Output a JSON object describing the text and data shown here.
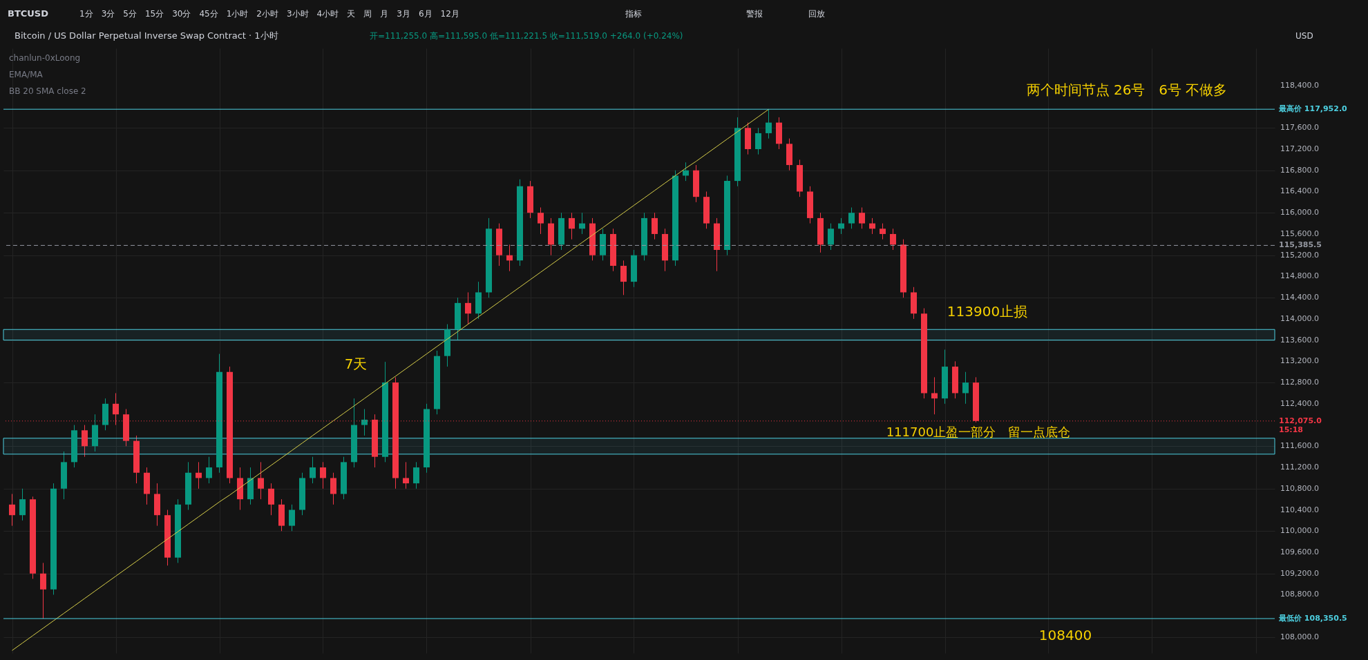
{
  "chart_data": {
    "type": "candlestick",
    "title": "Bitcoin / US Dollar Perpetual Inverse Swap Contract · 1小时",
    "categories": [
      null,
      null,
      null,
      null,
      null,
      null,
      null,
      null,
      null,
      null,
      null,
      null,
      null,
      null,
      null,
      null,
      null,
      null,
      null,
      null,
      null,
      null,
      null,
      null,
      null,
      null,
      null,
      null,
      null,
      null,
      null,
      null,
      null,
      null,
      null,
      null,
      null,
      null,
      null,
      null,
      null,
      null,
      null,
      null,
      null,
      null,
      null,
      null,
      null,
      null,
      null,
      null,
      null,
      null,
      null,
      null,
      null,
      null,
      null,
      null,
      null,
      null,
      null,
      null,
      null,
      null,
      null,
      null,
      null,
      null,
      null,
      null,
      null,
      null,
      null,
      null,
      null,
      null,
      null,
      null,
      null,
      null,
      null,
      null,
      null,
      null,
      null,
      null,
      null,
      null,
      null,
      null,
      null,
      null,
      null,
      null,
      null,
      null,
      null,
      null,
      null,
      null,
      null,
      null,
      null,
      null,
      null,
      null,
      null,
      null,
      null,
      null,
      null,
      null,
      null,
      null,
      null,
      null,
      null,
      null,
      null,
      null
    ],
    "ohlc": [
      [
        110500,
        110700,
        110100,
        110300
      ],
      [
        110300,
        110800,
        110200,
        110600
      ],
      [
        110600,
        110650,
        109100,
        109200
      ],
      [
        109200,
        109400,
        108350.5,
        108900
      ],
      [
        108900,
        110900,
        108800,
        110800
      ],
      [
        110800,
        111500,
        110600,
        111300
      ],
      [
        111300,
        112000,
        111200,
        111900
      ],
      [
        111900,
        112000,
        111400,
        111600
      ],
      [
        111600,
        112200,
        111500,
        112000
      ],
      [
        112000,
        112500,
        111900,
        112400
      ],
      [
        112400,
        112600,
        112000,
        112200
      ],
      [
        112200,
        112300,
        111600,
        111700
      ],
      [
        111700,
        111800,
        110900,
        111100
      ],
      [
        111100,
        111200,
        110500,
        110700
      ],
      [
        110700,
        110900,
        110100,
        110300
      ],
      [
        110300,
        110400,
        109350,
        109500
      ],
      [
        109500,
        110600,
        109400,
        110500
      ],
      [
        110500,
        111300,
        110400,
        111100
      ],
      [
        111100,
        111300,
        110800,
        111000
      ],
      [
        111000,
        111400,
        110900,
        111200
      ],
      [
        111200,
        113340,
        111100,
        113000
      ],
      [
        113000,
        113100,
        110900,
        111000
      ],
      [
        111000,
        111200,
        110400,
        110600
      ],
      [
        110600,
        111200,
        110500,
        111000
      ],
      [
        111000,
        111300,
        110600,
        110800
      ],
      [
        110800,
        110900,
        110300,
        110500
      ],
      [
        110500,
        110600,
        110000,
        110100
      ],
      [
        110100,
        110500,
        110000,
        110400
      ],
      [
        110400,
        111100,
        110300,
        111000
      ],
      [
        111000,
        111400,
        110900,
        111200
      ],
      [
        111200,
        111300,
        110800,
        111000
      ],
      [
        111000,
        111100,
        110500,
        110700
      ],
      [
        110700,
        111400,
        110600,
        111300
      ],
      [
        111300,
        112500,
        111200,
        112000
      ],
      [
        112000,
        112300,
        111800,
        112100
      ],
      [
        112100,
        112200,
        111200,
        111400
      ],
      [
        111400,
        113190,
        111300,
        112800
      ],
      [
        112800,
        112900,
        110800,
        111000
      ],
      [
        111000,
        111300,
        110800,
        110900
      ],
      [
        110900,
        111300,
        110800,
        111200
      ],
      [
        111200,
        112400,
        111100,
        112300
      ],
      [
        112300,
        113400,
        112200,
        113300
      ],
      [
        113300,
        113900,
        113100,
        113800
      ],
      [
        113800,
        114400,
        113600,
        114300
      ],
      [
        114300,
        114500,
        113900,
        114100
      ],
      [
        114100,
        114700,
        114000,
        114500
      ],
      [
        114500,
        115900,
        114400,
        115700
      ],
      [
        115700,
        115800,
        115000,
        115200
      ],
      [
        115200,
        115400,
        114900,
        115100
      ],
      [
        115100,
        116630,
        115000,
        116500
      ],
      [
        116500,
        116600,
        115900,
        116000
      ],
      [
        116000,
        116100,
        115600,
        115800
      ],
      [
        115800,
        115900,
        115200,
        115400
      ],
      [
        115400,
        116000,
        115300,
        115900
      ],
      [
        115900,
        116000,
        115500,
        115700
      ],
      [
        115700,
        116000,
        115600,
        115800
      ],
      [
        115800,
        115900,
        115100,
        115200
      ],
      [
        115200,
        115700,
        115100,
        115600
      ],
      [
        115600,
        115700,
        114900,
        115000
      ],
      [
        115000,
        115100,
        114450,
        114700
      ],
      [
        114700,
        115300,
        114600,
        115200
      ],
      [
        115200,
        116000,
        115100,
        115900
      ],
      [
        115900,
        116000,
        115500,
        115600
      ],
      [
        115600,
        115700,
        114900,
        115100
      ],
      [
        115100,
        116800,
        115000,
        116700
      ],
      [
        116700,
        116950,
        116600,
        116800
      ],
      [
        116800,
        116900,
        116200,
        116300
      ],
      [
        116300,
        116400,
        115700,
        115800
      ],
      [
        115800,
        115900,
        114900,
        115300
      ],
      [
        115300,
        116700,
        115200,
        116600
      ],
      [
        116600,
        117800,
        116500,
        117600
      ],
      [
        117600,
        117700,
        117100,
        117200
      ],
      [
        117200,
        117600,
        117100,
        117500
      ],
      [
        117500,
        117952,
        117400,
        117700
      ],
      [
        117700,
        117800,
        117200,
        117300
      ],
      [
        117300,
        117400,
        116800,
        116900
      ],
      [
        116900,
        117000,
        116300,
        116400
      ],
      [
        116400,
        116500,
        115800,
        115900
      ],
      [
        115900,
        116000,
        115250,
        115400
      ],
      [
        115400,
        115800,
        115300,
        115700
      ],
      [
        115700,
        115900,
        115600,
        115800
      ],
      [
        115800,
        116100,
        115700,
        116000
      ],
      [
        116000,
        116100,
        115700,
        115800
      ],
      [
        115800,
        115900,
        115600,
        115700
      ],
      [
        115700,
        115800,
        115500,
        115600
      ],
      [
        115600,
        115700,
        115300,
        115400
      ],
      [
        115400,
        115500,
        114400,
        114500
      ],
      [
        114500,
        114600,
        114000,
        114100
      ],
      [
        114100,
        114200,
        112500,
        112600
      ],
      [
        112600,
        112900,
        112200,
        112500
      ],
      [
        112500,
        113420,
        112400,
        113100
      ],
      [
        113100,
        113200,
        112500,
        112600
      ],
      [
        112600,
        113000,
        112400,
        112800
      ],
      [
        112800,
        112900,
        112050,
        112075
      ],
      null,
      null,
      null,
      null,
      null,
      null,
      null,
      null,
      null,
      null,
      null,
      null,
      null,
      null,
      null,
      null,
      null,
      null,
      null,
      null,
      null,
      null,
      null,
      null,
      null,
      null,
      null,
      null
    ],
    "colors": [
      "#f23645",
      "#089981",
      "#f23645",
      "#f23645",
      "#089981",
      "#089981",
      "#089981",
      "#f23645",
      "#089981",
      "#089981",
      "#f23645",
      "#f23645",
      "#f23645",
      "#f23645",
      "#f23645",
      "#f23645",
      "#089981",
      "#089981",
      "#f23645",
      "#089981",
      "#089981",
      "#f23645",
      "#f23645",
      "#089981",
      "#f23645",
      "#f23645",
      "#f23645",
      "#089981",
      "#089981",
      "#089981",
      "#f23645",
      "#f23645",
      "#089981",
      "#089981",
      "#089981",
      "#f23645",
      "#089981",
      "#f23645",
      "#f23645",
      "#089981",
      "#089981",
      "#089981",
      "#089981",
      "#089981",
      "#f23645",
      "#089981",
      "#089981",
      "#f23645",
      "#f23645",
      "#089981",
      "#f23645",
      "#f23645",
      "#f23645",
      "#089981",
      "#f23645",
      "#089981",
      "#f23645",
      "#089981",
      "#f23645",
      "#f23645",
      "#089981",
      "#089981",
      "#f23645",
      "#f23645",
      "#089981",
      "#089981",
      "#f23645",
      "#f23645",
      "#f23645",
      "#089981",
      "#089981",
      "#f23645",
      "#089981",
      "#089981",
      "#f23645",
      "#f23645",
      "#f23645",
      "#f23645",
      "#f23645",
      "#089981",
      "#089981",
      "#089981",
      "#f23645",
      "#f23645",
      "#f23645",
      "#f23645",
      "#f23645",
      "#f23645",
      "#f23645",
      "#f23645",
      "#089981",
      "#f23645",
      "#089981",
      "#f23645",
      null,
      null,
      null,
      null,
      null,
      null,
      null,
      null,
      null,
      null,
      null,
      null,
      null,
      null,
      null,
      null,
      null,
      null,
      null,
      null,
      null,
      null,
      null,
      null,
      null,
      null,
      null,
      null
    ],
    "series": [
      {
        "type": "line",
        "color": "#d8cf4a",
        "values": [
          107750,
          107890,
          108030,
          108170,
          108310,
          108450,
          108590,
          108730,
          108870,
          109010,
          109150,
          109290,
          109430,
          109570,
          109710,
          109850,
          109990,
          110130,
          110270,
          110410,
          110550,
          110680,
          110820,
          110960,
          111100,
          111240,
          111380,
          111520,
          111660,
          111800,
          111940,
          112080,
          112220,
          112360,
          112500,
          112640,
          112780,
          112920,
          113060,
          113200,
          113340,
          113480,
          113620,
          113760,
          113900,
          114040,
          114180,
          114320,
          114460,
          114600,
          114740,
          114880,
          115020,
          115160,
          115300,
          115440,
          115580,
          115720,
          115860,
          116000,
          116140,
          116280,
          116420,
          116560,
          116700,
          116840,
          116970,
          117110,
          117250,
          117390,
          117530,
          117670,
          117810,
          117950,
          null,
          null,
          null,
          null,
          null,
          null,
          null,
          null,
          null,
          null,
          null,
          null,
          null,
          null,
          null,
          null,
          null,
          null,
          null,
          null,
          null,
          null,
          null,
          null,
          null,
          null,
          null,
          null,
          null,
          null,
          null,
          null,
          null,
          null,
          null,
          null,
          null,
          null,
          null,
          null,
          null,
          null,
          null,
          null,
          null,
          null,
          null,
          null
        ]
      }
    ],
    "ylim": [
      107700,
      119100
    ],
    "yticks": [
      {
        "value": 108000,
        "label": "108,000.0"
      },
      {
        "value": 108800,
        "label": "108,800.0"
      },
      {
        "value": 109200,
        "label": "109,200.0"
      },
      {
        "value": 109600,
        "label": "109,600.0"
      },
      {
        "value": 110000,
        "label": "110,000.0"
      },
      {
        "value": 110400,
        "label": "110,400.0"
      },
      {
        "value": 110800,
        "label": "110,800.0"
      },
      {
        "value": 111200,
        "label": "111,200.0"
      },
      {
        "value": 111600,
        "label": "111,600.0"
      },
      {
        "value": 112400,
        "label": "112,400.0"
      },
      {
        "value": 112800,
        "label": "112,800.0"
      },
      {
        "value": 113200,
        "label": "113,200.0"
      },
      {
        "value": 113600,
        "label": "113,600.0"
      },
      {
        "value": 114000,
        "label": "114,000.0"
      },
      {
        "value": 114400,
        "label": "114,400.0"
      },
      {
        "value": 114800,
        "label": "114,800.0"
      },
      {
        "value": 115200,
        "label": "115,200.0"
      },
      {
        "value": 115600,
        "label": "115,600.0"
      },
      {
        "value": 116000,
        "label": "116,000.0"
      },
      {
        "value": 116400,
        "label": "116,400.0"
      },
      {
        "value": 116800,
        "label": "116,800.0"
      },
      {
        "value": 117200,
        "label": "117,200.0"
      },
      {
        "value": 117600,
        "label": "117,600.0"
      },
      {
        "value": 118400,
        "label": "118,400.0"
      }
    ],
    "grid": true,
    "ref_lines": [
      {
        "axis": "y",
        "value": 117952,
        "label": "最高价 117,952.0",
        "color": "#4dd0e1",
        "line_style": "solid"
      },
      {
        "axis": "y",
        "value": 108350.5,
        "label": "最低价 108,350.5",
        "color": "#4dd0e1",
        "line_style": "solid"
      },
      {
        "axis": "y",
        "value": 115385.5,
        "label": "115,385.5",
        "color": "#9598a1",
        "line_style": "dashed"
      },
      {
        "axis": "y",
        "value": 112075,
        "label": "112,075.0\n15:18",
        "color": "#f23645",
        "line_style": "dotted"
      }
    ],
    "bands": [
      {
        "axis": "y",
        "from": 113600,
        "to": 113800,
        "color": "#4dd0e1"
      },
      {
        "axis": "y",
        "from": 111450,
        "to": 111750,
        "color": "#4dd0e1"
      }
    ],
    "annotations": [
      "BTCUSD",
      "1分　3分　5分　15分　30分　45分　1小时　2小时　3小时　4小时　天　周　月　3月　6月　12月",
      "指标",
      "警报",
      "回放",
      "USD",
      "开=111,255.0 高=111,595.0 低=111,221.5 收=111,519.0 +264.0 (+0.24%)",
      "chanlun-0xLoong",
      "EMA/MA",
      "BB 20 SMA close 2",
      "两个时间节点 26号　6号  不做多",
      "113900止损",
      "111700止盈一部分　留一点底仓",
      "7天",
      "108400"
    ]
  }
}
